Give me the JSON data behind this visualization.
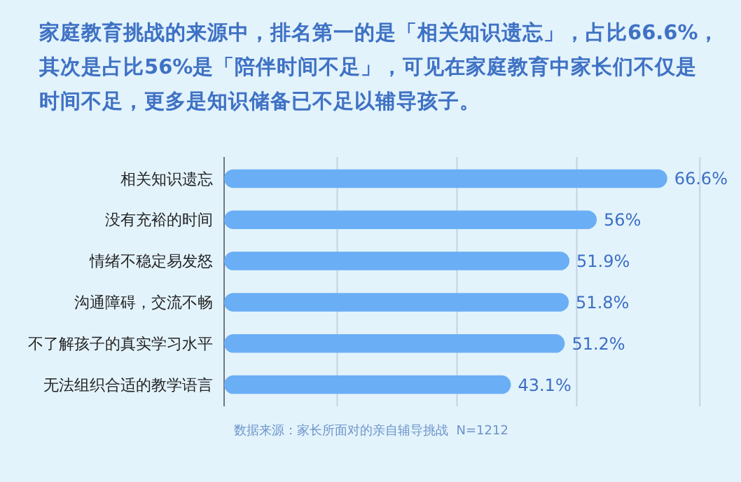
{
  "chart_data": {
    "type": "bar",
    "orientation": "horizontal",
    "title": "家庭教育挑战的来源中，排名第一的是「相关知识遗忘」，占比66.6%，其次是占比56%是「陪伴时间不足」，可见在家庭教育中家长们不仅是时间不足，更多是知识储备已不足以辅导孩子。",
    "categories": [
      "相关知识遗忘",
      "没有充裕的时间",
      "情绪不稳定易发怒",
      "沟通障碍，交流不畅",
      "不了解孩子的真实学习水平",
      "无法组织合适的教学语言"
    ],
    "values": [
      66.6,
      56,
      51.9,
      51.8,
      51.2,
      43.1
    ],
    "value_labels": [
      "66.6%",
      "56%",
      "51.9%",
      "51.8%",
      "51.2%",
      "43.1%"
    ],
    "color": "#6aaef5",
    "xlim": [
      0,
      72
    ],
    "xticks": [
      {
        "value": 17,
        "label": null
      },
      {
        "value": 35,
        "label": null
      },
      {
        "value": 53,
        "label": null
      },
      {
        "value": 71.5,
        "label": null
      }
    ],
    "grid": "x",
    "annotations": [
      "数据来源：家长所面对的亲自辅导挑战  N=1212"
    ]
  }
}
